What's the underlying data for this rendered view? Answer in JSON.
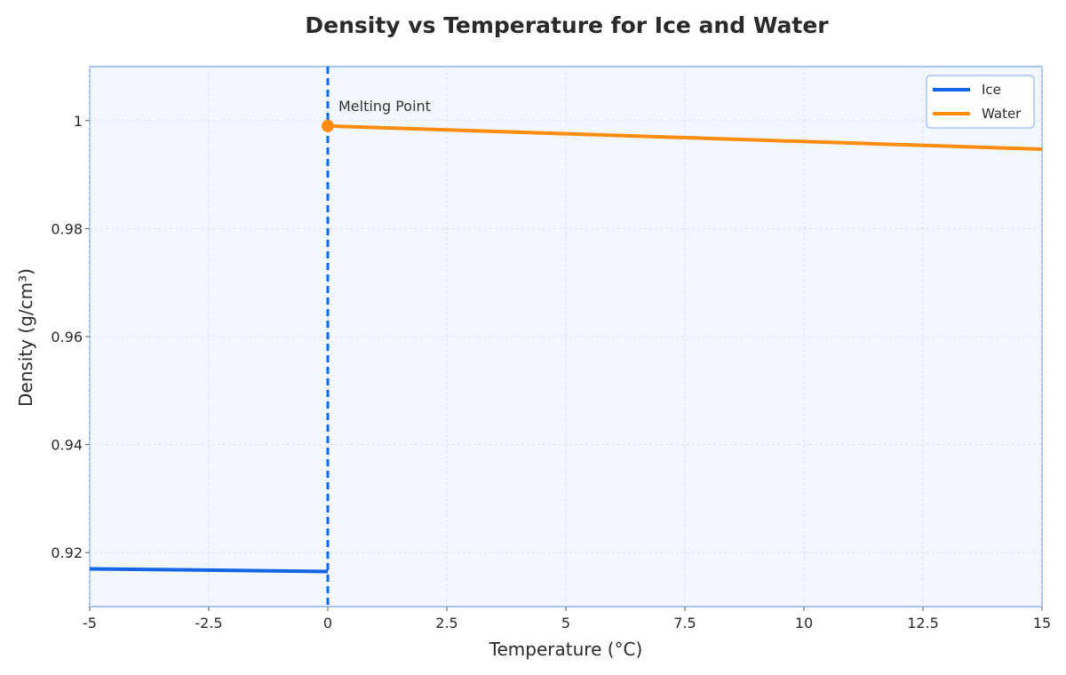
{
  "chart_data": {
    "type": "line",
    "title": "Density vs Temperature for Ice and Water",
    "xlabel": "Temperature (°C)",
    "ylabel": "Density (g/cm³)",
    "xlim": [
      -5,
      15
    ],
    "ylim": [
      0.91,
      1.01
    ],
    "xticks": [
      "-5",
      "-2.5",
      "0",
      "2.5",
      "5",
      "7.5",
      "10",
      "12.5",
      "15"
    ],
    "yticks": [
      "0.92",
      "0.94",
      "0.96",
      "0.98",
      "1"
    ],
    "grid": true,
    "legend_position": "top-right",
    "series": [
      {
        "name": "Ice",
        "color": "#1464e6",
        "x": [
          -5,
          0
        ],
        "y": [
          0.917,
          0.9165
        ]
      },
      {
        "name": "Water",
        "color": "#ff8c0f",
        "x": [
          0,
          15
        ],
        "y": [
          0.999,
          0.9947
        ]
      }
    ],
    "reference_line": {
      "x": 0,
      "style": "dashed",
      "color": "#1464e6"
    },
    "annotation": {
      "text": "Melting Point",
      "x": 0,
      "y": 0.999,
      "marker_color": "#ff8c0f"
    }
  }
}
